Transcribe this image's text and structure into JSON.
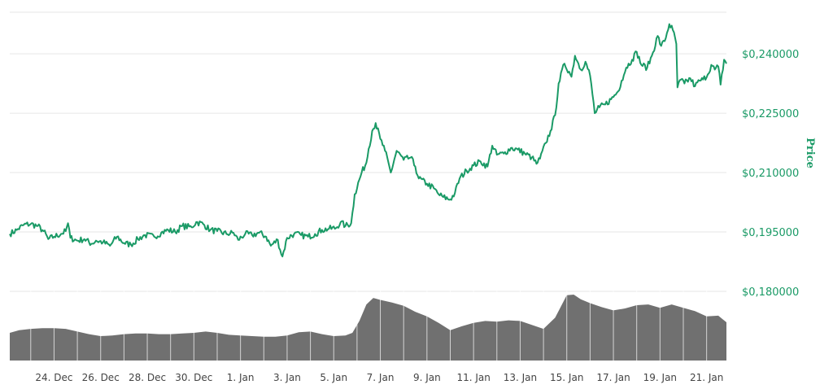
{
  "chart_data": {
    "type": "line",
    "ylabel": "Price",
    "ylim": [
      0.18,
      0.2505
    ],
    "yticks": [
      "$0,180000",
      "$0,195000",
      "$0,210000",
      "$0,225000",
      "$0,240000"
    ],
    "ytick_values": [
      0.18,
      0.195,
      0.21,
      0.225,
      0.24
    ],
    "xtick_labels": [
      "24. Dec",
      "26. Dec",
      "28. Dec",
      "30. Dec",
      "1. Jan",
      "3. Jan",
      "5. Jan",
      "7. Jan",
      "9. Jan",
      "11. Jan",
      "13. Jan",
      "15. Jan",
      "17. Jan",
      "19. Jan",
      "21. Jan"
    ],
    "xtick_days": [
      2,
      4,
      6,
      8,
      10,
      12,
      14,
      16,
      18,
      20,
      22,
      24,
      26,
      28,
      30
    ],
    "xlim": [
      0.1,
      30.85
    ],
    "line_color": "#1a9a66",
    "volume_color": "#707070",
    "price_series": [
      [
        0.1,
        0.1945
      ],
      [
        0.4,
        0.1955
      ],
      [
        0.7,
        0.1968
      ],
      [
        1.0,
        0.197
      ],
      [
        1.3,
        0.1965
      ],
      [
        1.55,
        0.1952
      ],
      [
        1.75,
        0.1932
      ],
      [
        2.0,
        0.1938
      ],
      [
        2.3,
        0.1945
      ],
      [
        2.5,
        0.1952
      ],
      [
        2.6,
        0.1972
      ],
      [
        2.7,
        0.1935
      ],
      [
        3.0,
        0.1928
      ],
      [
        3.3,
        0.1932
      ],
      [
        3.6,
        0.192
      ],
      [
        3.8,
        0.1928
      ],
      [
        4.1,
        0.1924
      ],
      [
        4.4,
        0.1915
      ],
      [
        4.7,
        0.1938
      ],
      [
        5.0,
        0.1922
      ],
      [
        5.3,
        0.1918
      ],
      [
        5.6,
        0.1932
      ],
      [
        5.9,
        0.1942
      ],
      [
        6.3,
        0.1938
      ],
      [
        6.6,
        0.1948
      ],
      [
        6.9,
        0.1955
      ],
      [
        7.2,
        0.195
      ],
      [
        7.5,
        0.1965
      ],
      [
        7.9,
        0.1962
      ],
      [
        8.1,
        0.1975
      ],
      [
        8.4,
        0.197
      ],
      [
        8.7,
        0.1955
      ],
      [
        9.0,
        0.1952
      ],
      [
        9.4,
        0.1945
      ],
      [
        9.7,
        0.1948
      ],
      [
        9.9,
        0.193
      ],
      [
        10.2,
        0.1945
      ],
      [
        10.5,
        0.1942
      ],
      [
        10.8,
        0.1948
      ],
      [
        11.1,
        0.1938
      ],
      [
        11.3,
        0.1915
      ],
      [
        11.6,
        0.193
      ],
      [
        11.7,
        0.1905
      ],
      [
        11.8,
        0.1888
      ],
      [
        12.0,
        0.1935
      ],
      [
        12.3,
        0.1945
      ],
      [
        12.6,
        0.1942
      ],
      [
        12.9,
        0.1938
      ],
      [
        13.2,
        0.1945
      ],
      [
        13.5,
        0.1955
      ],
      [
        13.8,
        0.1958
      ],
      [
        14.1,
        0.196
      ],
      [
        14.3,
        0.1975
      ],
      [
        14.5,
        0.1965
      ],
      [
        14.75,
        0.1972
      ],
      [
        14.9,
        0.2045
      ],
      [
        15.2,
        0.21
      ],
      [
        15.4,
        0.2125
      ],
      [
        15.5,
        0.216
      ],
      [
        15.65,
        0.2205
      ],
      [
        15.8,
        0.2225
      ],
      [
        16.0,
        0.2185
      ],
      [
        16.2,
        0.2155
      ],
      [
        16.45,
        0.21
      ],
      [
        16.7,
        0.2155
      ],
      [
        17.0,
        0.2132
      ],
      [
        17.3,
        0.2138
      ],
      [
        17.5,
        0.2115
      ],
      [
        17.65,
        0.2085
      ],
      [
        18.0,
        0.2072
      ],
      [
        18.3,
        0.206
      ],
      [
        18.5,
        0.2045
      ],
      [
        18.7,
        0.2038
      ],
      [
        19.0,
        0.2032
      ],
      [
        19.2,
        0.2048
      ],
      [
        19.4,
        0.2085
      ],
      [
        19.7,
        0.2105
      ],
      [
        20.0,
        0.2118
      ],
      [
        20.3,
        0.2128
      ],
      [
        20.6,
        0.2115
      ],
      [
        20.8,
        0.2168
      ],
      [
        21.0,
        0.2145
      ],
      [
        21.3,
        0.2148
      ],
      [
        21.6,
        0.2162
      ],
      [
        21.9,
        0.2158
      ],
      [
        22.2,
        0.2148
      ],
      [
        22.5,
        0.2138
      ],
      [
        22.7,
        0.2122
      ],
      [
        22.85,
        0.2135
      ],
      [
        23.1,
        0.2175
      ],
      [
        23.3,
        0.2205
      ],
      [
        23.5,
        0.2245
      ],
      [
        23.65,
        0.2325
      ],
      [
        23.9,
        0.2375
      ],
      [
        24.1,
        0.2355
      ],
      [
        24.2,
        0.2342
      ],
      [
        24.35,
        0.2395
      ],
      [
        24.5,
        0.2375
      ],
      [
        24.6,
        0.236
      ],
      [
        24.8,
        0.238
      ],
      [
        25.0,
        0.2345
      ],
      [
        25.2,
        0.225
      ],
      [
        25.4,
        0.2265
      ],
      [
        25.65,
        0.2272
      ],
      [
        25.9,
        0.2285
      ],
      [
        26.2,
        0.2305
      ],
      [
        26.35,
        0.2332
      ],
      [
        26.55,
        0.2365
      ],
      [
        26.8,
        0.2385
      ],
      [
        27.0,
        0.2405
      ],
      [
        27.2,
        0.2372
      ],
      [
        27.45,
        0.2365
      ],
      [
        27.65,
        0.2395
      ],
      [
        27.9,
        0.2445
      ],
      [
        28.05,
        0.242
      ],
      [
        28.2,
        0.2432
      ],
      [
        28.4,
        0.2475
      ],
      [
        28.55,
        0.246
      ],
      [
        28.7,
        0.2425
      ],
      [
        28.75,
        0.2315
      ],
      [
        28.9,
        0.2335
      ],
      [
        29.05,
        0.2325
      ],
      [
        29.3,
        0.2338
      ],
      [
        29.5,
        0.2318
      ],
      [
        29.7,
        0.2332
      ],
      [
        29.85,
        0.2335
      ],
      [
        30.05,
        0.2348
      ],
      [
        30.2,
        0.2372
      ],
      [
        30.35,
        0.236
      ],
      [
        30.5,
        0.2368
      ],
      [
        30.6,
        0.2322
      ],
      [
        30.75,
        0.2385
      ],
      [
        30.85,
        0.2375
      ]
    ],
    "volume_series": [
      [
        0.1,
        0.42
      ],
      [
        0.5,
        0.46
      ],
      [
        1.0,
        0.48
      ],
      [
        1.5,
        0.49
      ],
      [
        2.0,
        0.49
      ],
      [
        2.5,
        0.48
      ],
      [
        3.0,
        0.44
      ],
      [
        3.5,
        0.4
      ],
      [
        4.0,
        0.37
      ],
      [
        4.5,
        0.38
      ],
      [
        5.0,
        0.4
      ],
      [
        5.5,
        0.41
      ],
      [
        6.0,
        0.41
      ],
      [
        6.5,
        0.4
      ],
      [
        7.0,
        0.4
      ],
      [
        7.5,
        0.41
      ],
      [
        8.0,
        0.42
      ],
      [
        8.5,
        0.44
      ],
      [
        9.0,
        0.42
      ],
      [
        9.5,
        0.39
      ],
      [
        10.0,
        0.38
      ],
      [
        10.5,
        0.37
      ],
      [
        11.0,
        0.36
      ],
      [
        11.5,
        0.36
      ],
      [
        12.0,
        0.38
      ],
      [
        12.5,
        0.43
      ],
      [
        13.0,
        0.44
      ],
      [
        13.5,
        0.4
      ],
      [
        14.0,
        0.37
      ],
      [
        14.5,
        0.38
      ],
      [
        14.8,
        0.42
      ],
      [
        15.1,
        0.6
      ],
      [
        15.4,
        0.85
      ],
      [
        15.7,
        0.95
      ],
      [
        16.0,
        0.92
      ],
      [
        16.5,
        0.88
      ],
      [
        17.0,
        0.83
      ],
      [
        17.5,
        0.74
      ],
      [
        18.0,
        0.67
      ],
      [
        18.5,
        0.57
      ],
      [
        19.0,
        0.46
      ],
      [
        19.5,
        0.52
      ],
      [
        20.0,
        0.57
      ],
      [
        20.5,
        0.6
      ],
      [
        21.0,
        0.59
      ],
      [
        21.5,
        0.61
      ],
      [
        22.0,
        0.6
      ],
      [
        22.5,
        0.54
      ],
      [
        23.0,
        0.48
      ],
      [
        23.5,
        0.65
      ],
      [
        24.0,
        0.99
      ],
      [
        24.3,
        1.0
      ],
      [
        24.6,
        0.93
      ],
      [
        25.0,
        0.87
      ],
      [
        25.5,
        0.81
      ],
      [
        26.0,
        0.76
      ],
      [
        26.5,
        0.79
      ],
      [
        27.0,
        0.84
      ],
      [
        27.5,
        0.85
      ],
      [
        28.0,
        0.8
      ],
      [
        28.5,
        0.85
      ],
      [
        29.0,
        0.8
      ],
      [
        29.5,
        0.75
      ],
      [
        30.0,
        0.67
      ],
      [
        30.5,
        0.68
      ],
      [
        30.85,
        0.58
      ]
    ]
  }
}
